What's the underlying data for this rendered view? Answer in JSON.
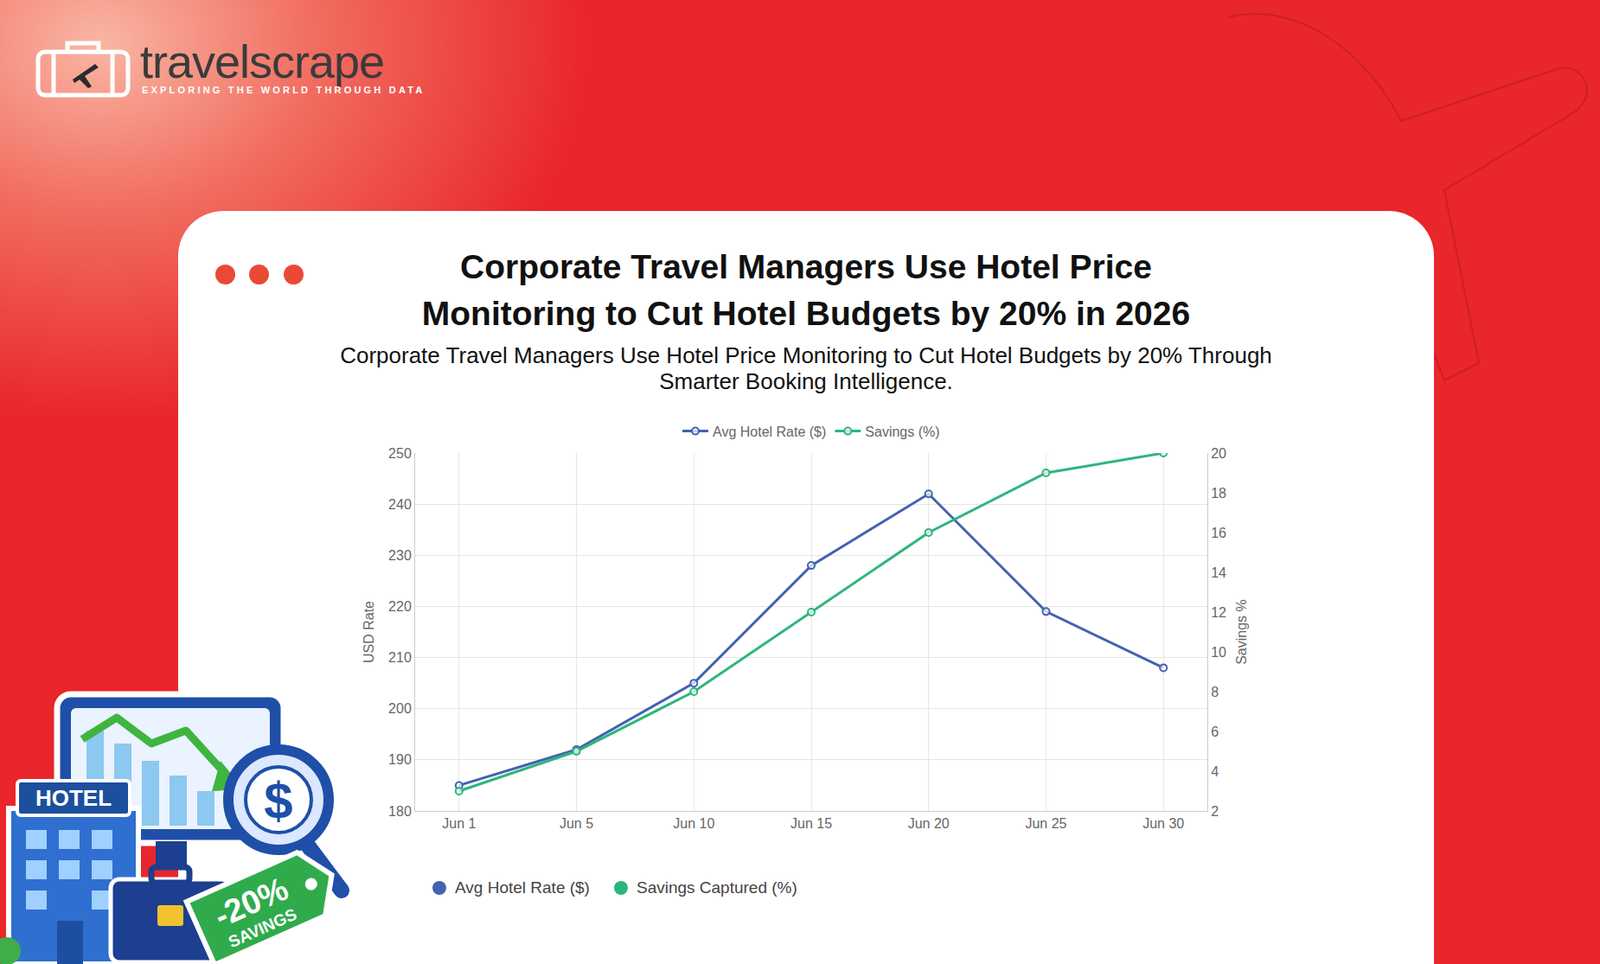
{
  "brand": {
    "name": "travelscrape",
    "tagline": "EXPLORING THE WORLD THROUGH DATA"
  },
  "chart_data": {
    "type": "line",
    "title": "Corporate Travel Managers Use Hotel Price Monitoring to Cut Hotel Budgets by 20% in 2026",
    "subtitle": "Corporate Travel Managers Use Hotel Price Monitoring to Cut Hotel Budgets by 20% Through Smarter Booking Intelligence.",
    "categories": [
      "Jun 1",
      "Jun 5",
      "Jun 10",
      "Jun 15",
      "Jun 20",
      "Jun 25",
      "Jun 30"
    ],
    "y_label": "USD Rate",
    "y2_label": "Savings %",
    "ylim": [
      180,
      250
    ],
    "yticks": [
      180,
      190,
      200,
      210,
      220,
      230,
      240,
      250
    ],
    "y2lim": [
      2,
      20
    ],
    "y2ticks": [
      2,
      4,
      6,
      8,
      10,
      12,
      14,
      16,
      18,
      20
    ],
    "series": [
      {
        "name": "Avg Hotel Rate ($)",
        "color": "#4462b0",
        "marker": "circle",
        "values": [
          185,
          192,
          205,
          228,
          242,
          219,
          208
        ]
      },
      {
        "name": "Savings (%)",
        "color": "#2db67c",
        "marker": "circle",
        "axis": "y2",
        "values": [
          3,
          5,
          8,
          12,
          16,
          19,
          20
        ]
      }
    ],
    "grid": true,
    "legend": "top"
  },
  "footer_legend": [
    {
      "name": "Avg Hotel Rate ($)",
      "color": "#4462b0"
    },
    {
      "name": "Savings Captured (%)",
      "color": "#2db67c"
    }
  ],
  "illustration": {
    "sign": "HOTEL",
    "lens": "$",
    "tag": "-20%",
    "tag_caption": "SAVINGS"
  }
}
